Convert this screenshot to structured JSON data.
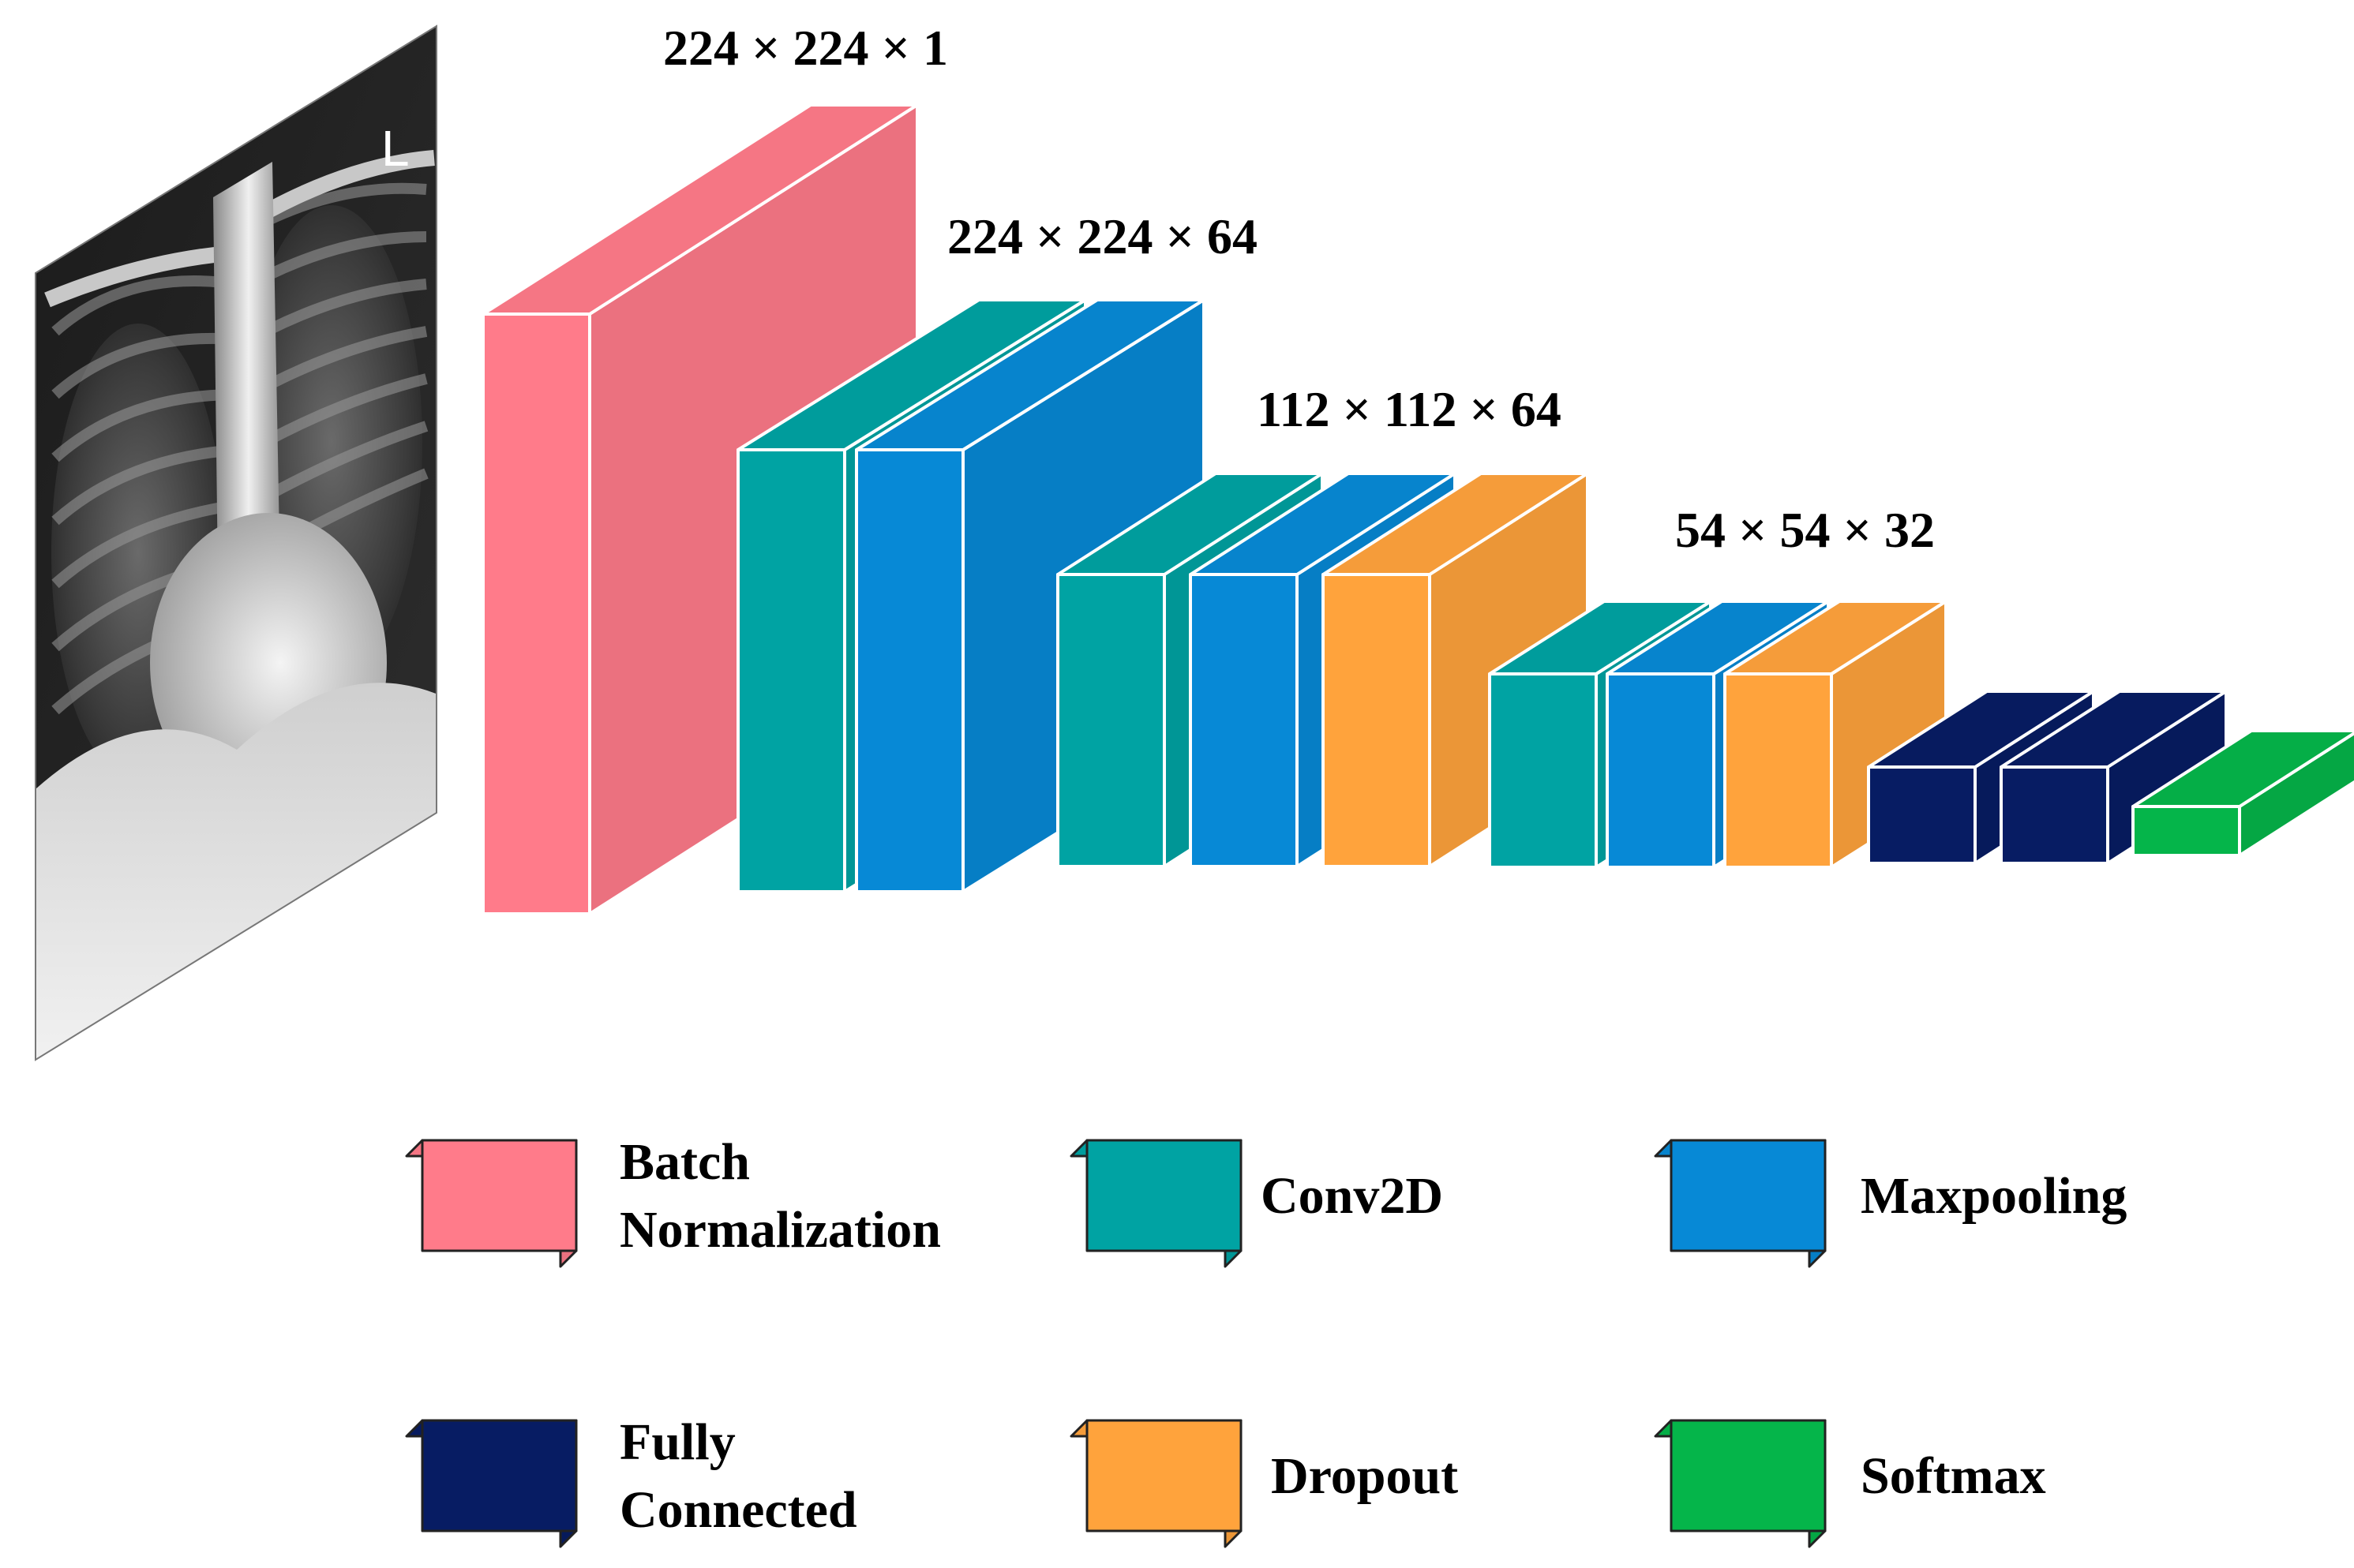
{
  "colors": {
    "batch_normalization": "#FF7B8A",
    "conv2d": "#00A3A3",
    "maxpooling": "#0789D6",
    "fully_connected": "#071C63",
    "dropout": "#FFA33C",
    "softmax": "#05B54A",
    "edge": "#ffffff",
    "legend_edge": "#222222"
  },
  "input_image": {
    "icon": "chest-xray-image",
    "marker": "L"
  },
  "dimension_labels": [
    {
      "id": "dim-input",
      "text": "224 × 224 × 1"
    },
    {
      "id": "dim-conv1",
      "text": "224 × 224 × 64"
    },
    {
      "id": "dim-conv2",
      "text": "112 × 112 × 64"
    },
    {
      "id": "dim-conv3",
      "text": "54 × 54 × 32"
    }
  ],
  "layers": [
    {
      "id": "batch-normalization",
      "type": "batch_normalization"
    },
    {
      "id": "conv2d-1",
      "type": "conv2d"
    },
    {
      "id": "maxpooling-1",
      "type": "maxpooling"
    },
    {
      "id": "conv2d-2",
      "type": "conv2d"
    },
    {
      "id": "maxpooling-2",
      "type": "maxpooling"
    },
    {
      "id": "dropout-1",
      "type": "dropout"
    },
    {
      "id": "conv2d-3",
      "type": "conv2d"
    },
    {
      "id": "maxpooling-3",
      "type": "maxpooling"
    },
    {
      "id": "dropout-2",
      "type": "dropout"
    },
    {
      "id": "fully-connected-1",
      "type": "fully_connected"
    },
    {
      "id": "fully-connected-2",
      "type": "fully_connected"
    },
    {
      "id": "softmax",
      "type": "softmax"
    }
  ],
  "legend": [
    {
      "id": "batch-normalization",
      "type": "batch_normalization",
      "lines": [
        "Batch",
        "Normalization"
      ]
    },
    {
      "id": "conv2d",
      "type": "conv2d",
      "lines": [
        "Conv2D"
      ]
    },
    {
      "id": "maxpooling",
      "type": "maxpooling",
      "lines": [
        "Maxpooling"
      ]
    },
    {
      "id": "fully-connected",
      "type": "fully_connected",
      "lines": [
        "Fully",
        "Connected"
      ]
    },
    {
      "id": "dropout",
      "type": "dropout",
      "lines": [
        "Dropout"
      ]
    },
    {
      "id": "softmax",
      "type": "softmax",
      "lines": [
        "Softmax"
      ]
    }
  ]
}
